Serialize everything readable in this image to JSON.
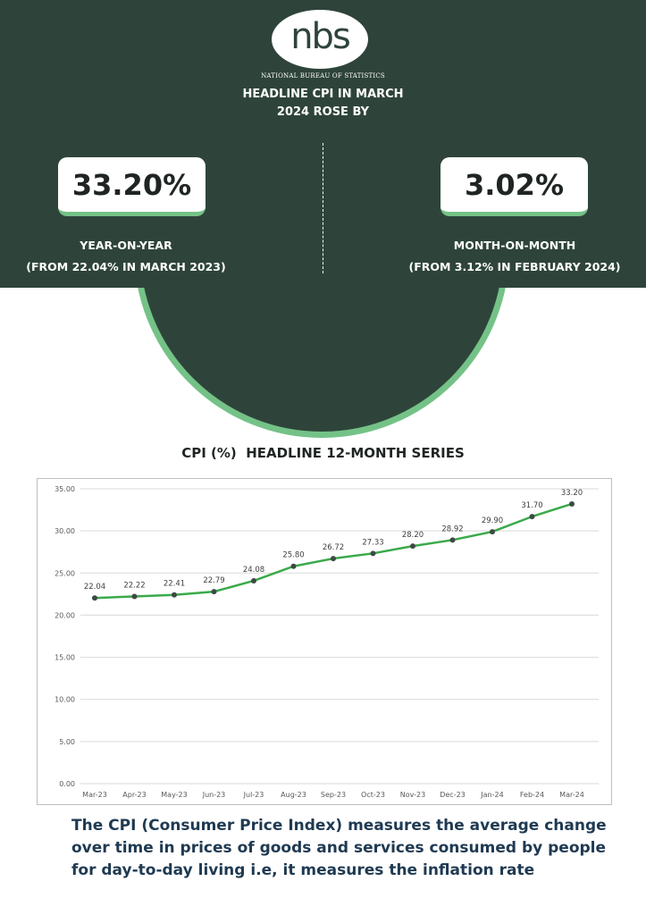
{
  "logo": {
    "text": "nbs",
    "org_name": "NATIONAL BUREAU OF STATISTICS"
  },
  "headline": {
    "line1": "HEADLINE CPI IN MARCH",
    "line2": "2024 ROSE BY"
  },
  "yoy": {
    "value": "33.20%",
    "label": "YEAR-ON-YEAR",
    "sub": "(FROM 22.04% IN MARCH 2023)"
  },
  "mom": {
    "value": "3.02%",
    "label": "MONTH-ON-MONTH",
    "sub": "(FROM 3.12% IN FEBRUARY 2024)"
  },
  "chart_title": "CPI (%)  HEADLINE 12-MONTH SERIES",
  "chart_data": {
    "type": "line",
    "title": "CPI (%)  HEADLINE 12-MONTH SERIES",
    "categories": [
      "Mar-23",
      "Apr-23",
      "May-23",
      "Jun-23",
      "Jul-23",
      "Aug-23",
      "Sep-23",
      "Oct-23",
      "Nov-23",
      "Dec-23",
      "Jan-24",
      "Feb-24",
      "Mar-24"
    ],
    "series": [
      {
        "values": [
          22.04,
          22.22,
          22.41,
          22.79,
          24.08,
          25.8,
          26.72,
          27.33,
          28.2,
          28.92,
          29.9,
          31.7,
          33.2
        ]
      }
    ],
    "data_labels": [
      "22.04",
      "22.22",
      "22.41",
      "22.79",
      "24.08",
      "25.80",
      "26.72",
      "27.33",
      "28.20",
      "28.92",
      "29.90",
      "31.70",
      "33.20"
    ],
    "y_ticks": [
      "0.00",
      "5.00",
      "10.00",
      "15.00",
      "20.00",
      "25.00",
      "30.00",
      "35.00"
    ],
    "ylim": [
      0,
      35
    ],
    "grid": true,
    "line_color": "#3aaa4a",
    "marker_color": "#3d4a44"
  },
  "footer": {
    "line1": "The CPI (Consumer Price Index) measures the average change",
    "line2": "over time in prices of goods and services consumed by people",
    "line3": "for day-to-day living i.e, it measures the inflation rate"
  },
  "colors": {
    "header_bg": "#2e443a",
    "accent_green": "#74c287",
    "footer_text": "#1f3a52"
  }
}
